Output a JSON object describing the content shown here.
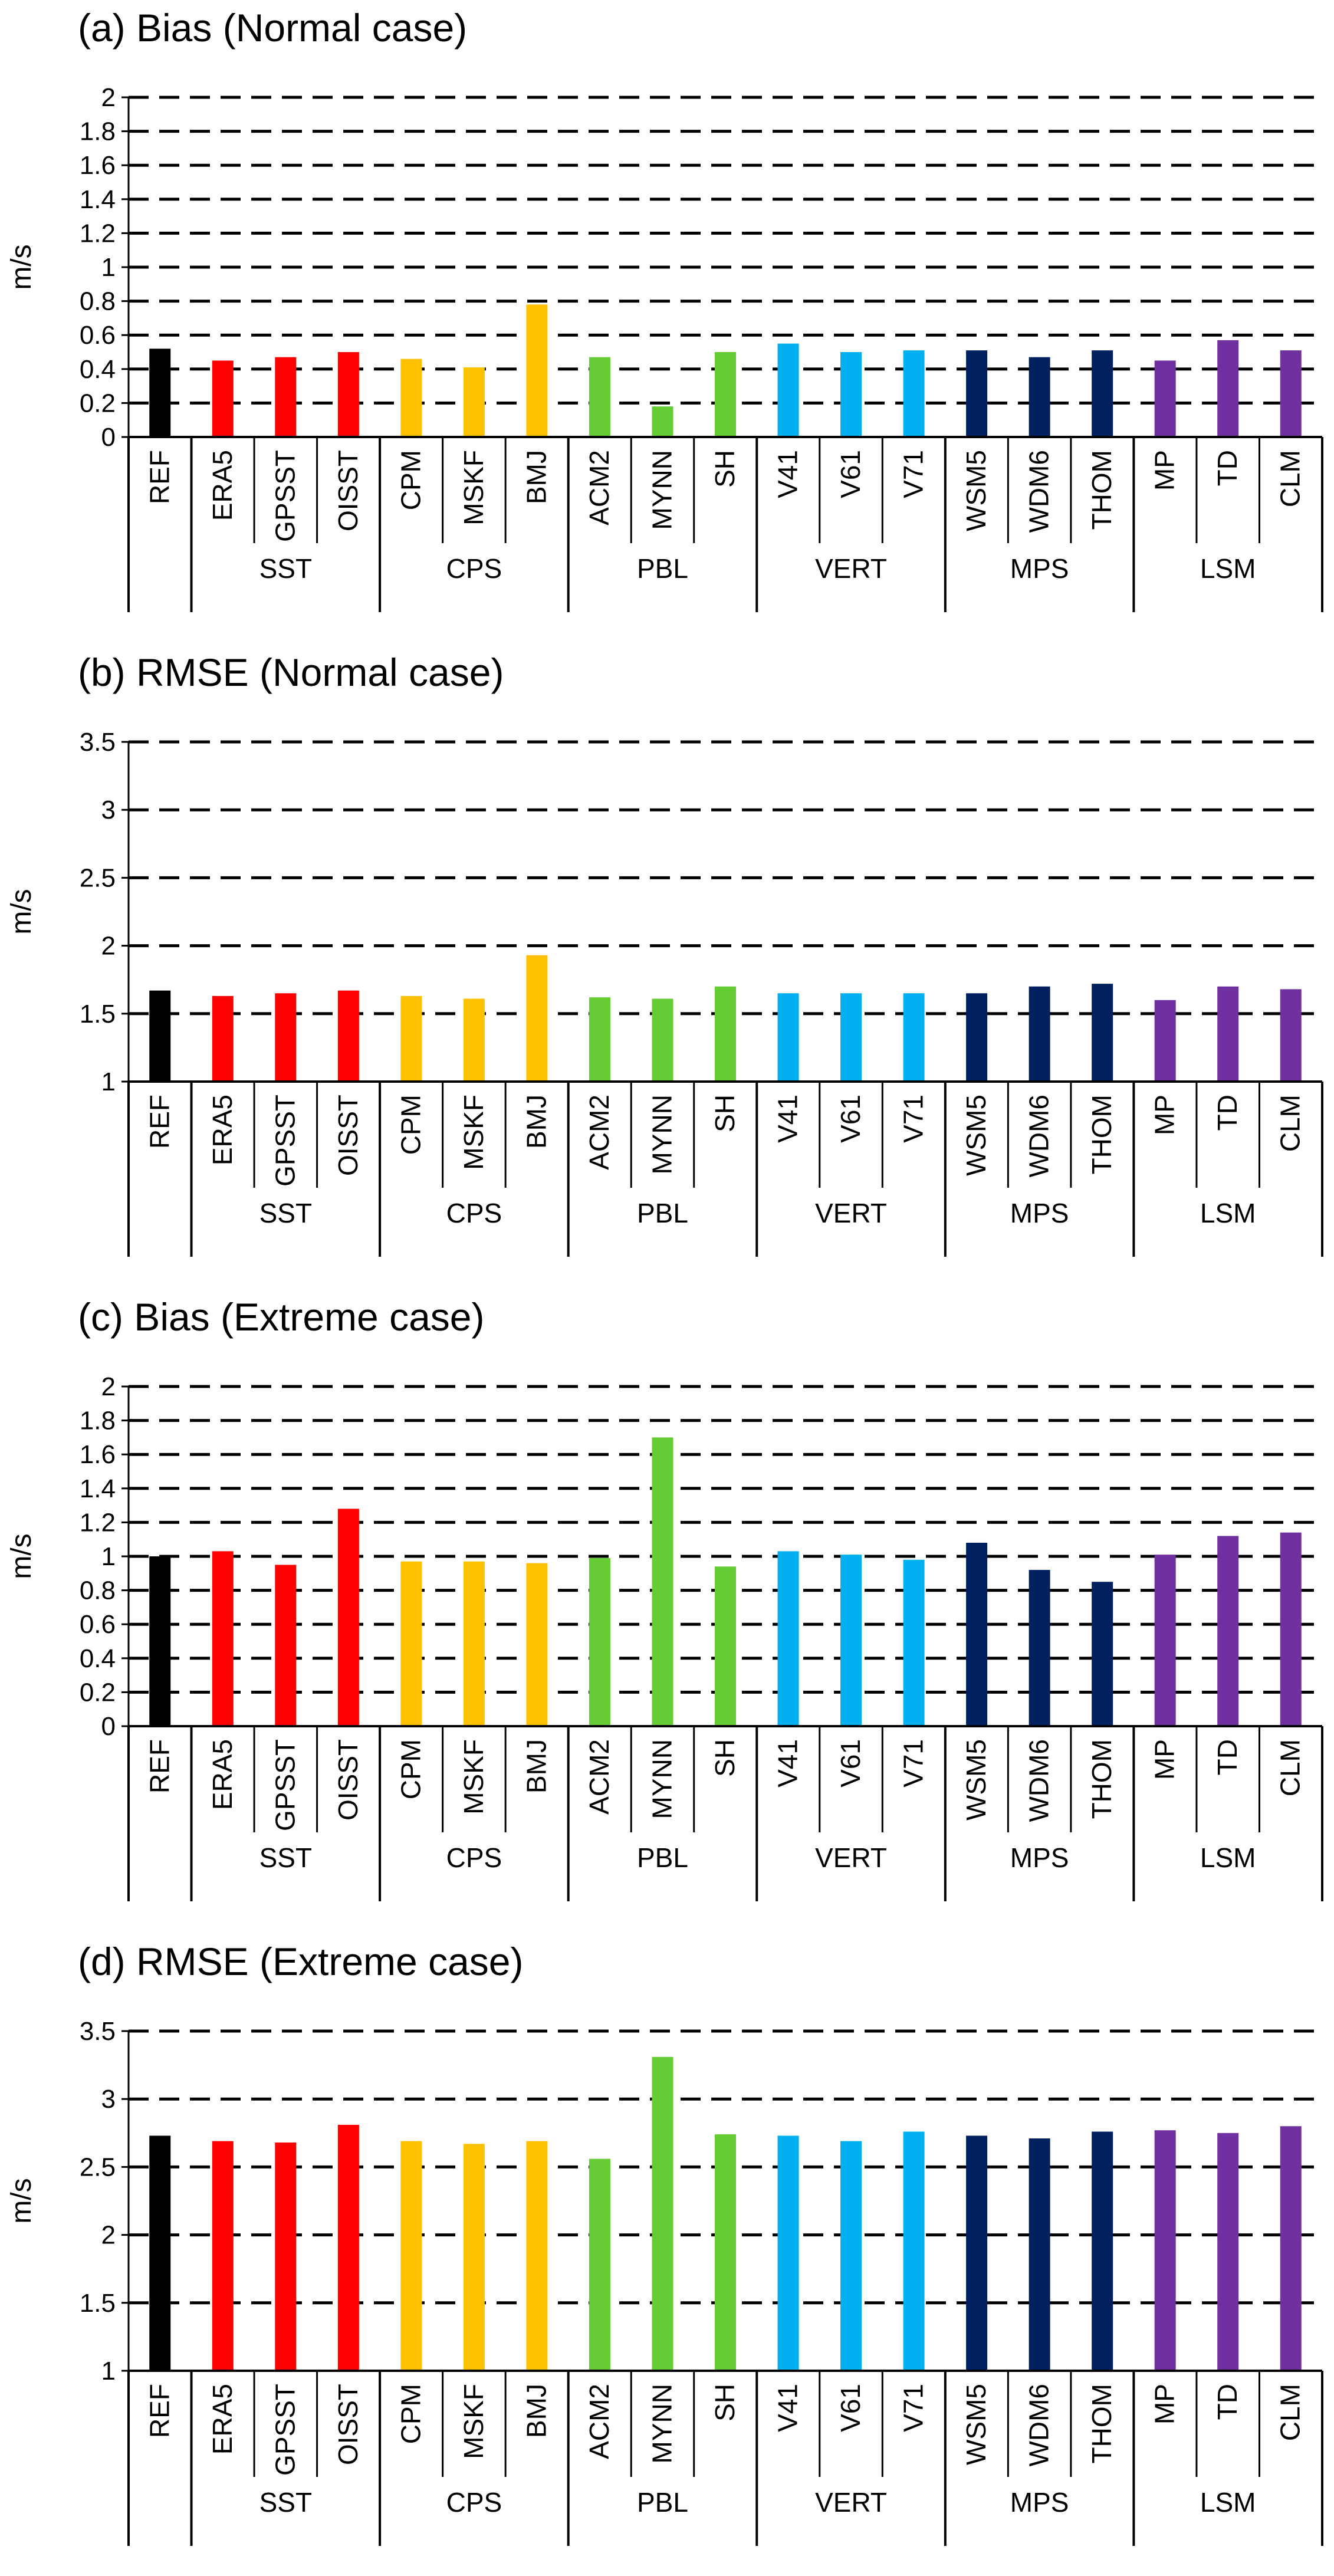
{
  "chart_data": [
    {
      "type": "bar",
      "title": "(a) Bias (Normal case)",
      "ylabel": "m/s",
      "ylim": [
        0,
        2
      ],
      "yticks": [
        "0",
        "0.2",
        "0.4",
        "0.6",
        "0.8",
        "1",
        "1.2",
        "1.4",
        "1.6",
        "1.8",
        "2"
      ],
      "grid": "dashed-horizontal",
      "categories": [
        "REF",
        "ERA5",
        "GPSST",
        "OISST",
        "CPM",
        "MSKF",
        "BMJ",
        "ACM2",
        "MYNN",
        "SH",
        "V41",
        "V61",
        "V71",
        "WSM5",
        "WDM6",
        "THOM",
        "MP",
        "TD",
        "CLM"
      ],
      "groups": [
        "SST",
        "CPS",
        "PBL",
        "VERT",
        "MPS",
        "LSM"
      ],
      "values": [
        0.52,
        0.45,
        0.47,
        0.5,
        0.46,
        0.41,
        0.78,
        0.47,
        0.18,
        0.5,
        0.55,
        0.5,
        0.51,
        0.51,
        0.47,
        0.51,
        0.45,
        0.57,
        0.51
      ]
    },
    {
      "type": "bar",
      "title": "(b) RMSE (Normal case)",
      "ylabel": "m/s",
      "ylim": [
        1,
        3.5
      ],
      "yticks": [
        "1",
        "1.5",
        "2",
        "2.5",
        "3",
        "3.5"
      ],
      "grid": "dashed-horizontal",
      "categories": [
        "REF",
        "ERA5",
        "GPSST",
        "OISST",
        "CPM",
        "MSKF",
        "BMJ",
        "ACM2",
        "MYNN",
        "SH",
        "V41",
        "V61",
        "V71",
        "WSM5",
        "WDM6",
        "THOM",
        "MP",
        "TD",
        "CLM"
      ],
      "groups": [
        "SST",
        "CPS",
        "PBL",
        "VERT",
        "MPS",
        "LSM"
      ],
      "values": [
        1.67,
        1.63,
        1.65,
        1.67,
        1.63,
        1.61,
        1.93,
        1.62,
        1.61,
        1.7,
        1.65,
        1.65,
        1.65,
        1.65,
        1.7,
        1.72,
        1.6,
        1.7,
        1.68
      ]
    },
    {
      "type": "bar",
      "title": "(c) Bias (Extreme case)",
      "ylabel": "m/s",
      "ylim": [
        0,
        2
      ],
      "yticks": [
        "0",
        "0.2",
        "0.4",
        "0.6",
        "0.8",
        "1",
        "1.2",
        "1.4",
        "1.6",
        "1.8",
        "2"
      ],
      "grid": "dashed-horizontal",
      "categories": [
        "REF",
        "ERA5",
        "GPSST",
        "OISST",
        "CPM",
        "MSKF",
        "BMJ",
        "ACM2",
        "MYNN",
        "SH",
        "V41",
        "V61",
        "V71",
        "WSM5",
        "WDM6",
        "THOM",
        "MP",
        "TD",
        "CLM"
      ],
      "groups": [
        "SST",
        "CPS",
        "PBL",
        "VERT",
        "MPS",
        "LSM"
      ],
      "values": [
        1.0,
        1.03,
        0.95,
        1.28,
        0.97,
        0.97,
        0.96,
        0.99,
        1.7,
        0.94,
        1.03,
        1.01,
        0.98,
        1.08,
        0.92,
        0.85,
        1.01,
        1.12,
        1.14
      ]
    },
    {
      "type": "bar",
      "title": "(d) RMSE (Extreme case)",
      "ylabel": "m/s",
      "ylim": [
        1,
        3.5
      ],
      "yticks": [
        "1",
        "1.5",
        "2",
        "2.5",
        "3",
        "3.5"
      ],
      "grid": "dashed-horizontal",
      "categories": [
        "REF",
        "ERA5",
        "GPSST",
        "OISST",
        "CPM",
        "MSKF",
        "BMJ",
        "ACM2",
        "MYNN",
        "SH",
        "V41",
        "V61",
        "V71",
        "WSM5",
        "WDM6",
        "THOM",
        "MP",
        "TD",
        "CLM"
      ],
      "groups": [
        "SST",
        "CPS",
        "PBL",
        "VERT",
        "MPS",
        "LSM"
      ],
      "values": [
        2.73,
        2.69,
        2.68,
        2.81,
        2.69,
        2.67,
        2.69,
        2.56,
        3.31,
        2.74,
        2.73,
        2.69,
        2.76,
        2.73,
        2.71,
        2.76,
        2.77,
        2.75,
        2.8
      ]
    }
  ],
  "colors": {
    "REF": "#000000",
    "SST": "#ff0000",
    "CPS": "#ffc000",
    "PBL": "#66cc33",
    "VERT": "#00b0f0",
    "MPS": "#002060",
    "LSM": "#7030a0"
  }
}
